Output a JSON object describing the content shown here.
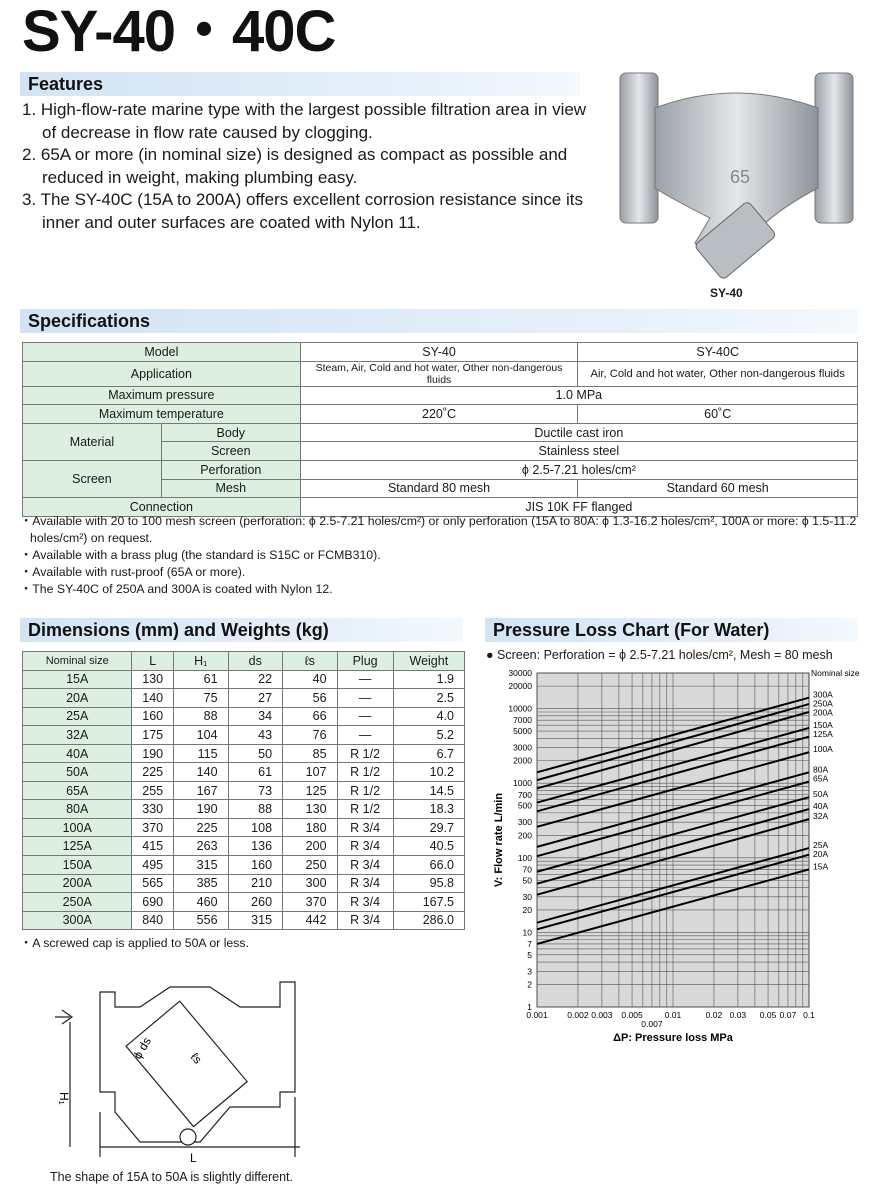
{
  "title": "SY-40・40C",
  "features": {
    "heading": "Features",
    "items": [
      "1. High-flow-rate marine type with the largest possible filtration area in view of decrease in flow rate caused by clogging.",
      "2. 65A or more (in nominal size) is designed as compact as possible and reduced in weight, making plumbing easy.",
      "3. The SY-40C (15A to 200A) offers excellent corrosion resistance since its inner and outer surfaces are coated with Nylon 11."
    ]
  },
  "photo": {
    "caption": "SY-40",
    "body_mark": "65"
  },
  "specs": {
    "heading": "Specifications",
    "model_label": "Model",
    "models": [
      "SY-40",
      "SY-40C"
    ],
    "application_label": "Application",
    "application": [
      "Steam, Air, Cold and hot water, Other non-dangerous fluids",
      "Air, Cold and hot water, Other non-dangerous fluids"
    ],
    "pressure_label": "Maximum pressure",
    "pressure": "1.0 MPa",
    "temperature_label": "Maximum temperature",
    "temperature": [
      "220˚C",
      "60˚C"
    ],
    "material_label": "Material",
    "body_label": "Body",
    "body": "Ductile cast iron",
    "screen_label": "Screen",
    "screen_material": "Stainless steel",
    "screen_group_label": "Screen",
    "perforation_label": "Perforation",
    "perforation": "ϕ 2.5-7.21 holes/cm²",
    "mesh_label": "Mesh",
    "mesh": [
      "Standard 80 mesh",
      "Standard 60 mesh"
    ],
    "connection_label": "Connection",
    "connection": "JIS 10K FF flanged",
    "notes": [
      "・Available with 20 to 100 mesh screen (perforation: ϕ 2.5-7.21 holes/cm²) or only perforation (15A to 80A: ϕ 1.3-16.2 holes/cm², 100A or more: ϕ 1.5-11.2 holes/cm²) on request.",
      "・Available with a brass plug (the standard is S15C or FCMB310).",
      "・Available with rust-proof (65A or more).",
      "・The SY-40C of 250A and 300A is coated with Nylon 12."
    ]
  },
  "dimensions": {
    "heading": "Dimensions (mm) and Weights (kg)",
    "columns": [
      "Nominal size",
      "L",
      "H₁",
      "ds",
      "ℓs",
      "Plug",
      "Weight"
    ],
    "rows": [
      [
        "15A",
        "130",
        "61",
        "22",
        "40",
        "—",
        "1.9"
      ],
      [
        "20A",
        "140",
        "75",
        "27",
        "56",
        "—",
        "2.5"
      ],
      [
        "25A",
        "160",
        "88",
        "34",
        "66",
        "—",
        "4.0"
      ],
      [
        "32A",
        "175",
        "104",
        "43",
        "76",
        "—",
        "5.2"
      ],
      [
        "40A",
        "190",
        "115",
        "50",
        "85",
        "R 1/2",
        "6.7"
      ],
      [
        "50A",
        "225",
        "140",
        "61",
        "107",
        "R 1/2",
        "10.2"
      ],
      [
        "65A",
        "255",
        "167",
        "73",
        "125",
        "R 1/2",
        "14.5"
      ],
      [
        "80A",
        "330",
        "190",
        "88",
        "130",
        "R 1/2",
        "18.3"
      ],
      [
        "100A",
        "370",
        "225",
        "108",
        "180",
        "R 3/4",
        "29.7"
      ],
      [
        "125A",
        "415",
        "263",
        "136",
        "200",
        "R 3/4",
        "40.5"
      ],
      [
        "150A",
        "495",
        "315",
        "160",
        "250",
        "R 3/4",
        "66.0"
      ],
      [
        "200A",
        "565",
        "385",
        "210",
        "300",
        "R 3/4",
        "95.8"
      ],
      [
        "250A",
        "690",
        "460",
        "260",
        "370",
        "R 3/4",
        "167.5"
      ],
      [
        "300A",
        "840",
        "556",
        "315",
        "442",
        "R 3/4",
        "286.0"
      ]
    ],
    "note": "・A screwed cap is applied to 50A or less."
  },
  "diagram": {
    "labels": {
      "ds": "ϕ ds",
      "ls": "ℓs",
      "h1": "H₁",
      "l": "L"
    },
    "caption": "The shape of 15A to 50A is slightly different."
  },
  "chart_data": {
    "type": "line",
    "title": "Pressure Loss Chart (For Water)",
    "subtitle": "● Screen: Perforation = ϕ 2.5-7.21 holes/cm², Mesh = 80 mesh",
    "xlabel": "ΔP: Pressure loss MPa",
    "ylabel": "V: Flow rate L/min",
    "xscale": "log",
    "yscale": "log",
    "xlim": [
      0.001,
      0.1
    ],
    "ylim": [
      1,
      30000
    ],
    "grid": true,
    "xticks": [
      "0.001",
      "0.002",
      "0.003",
      "0.005",
      "0.007",
      "0.01",
      "0.02",
      "0.03",
      "0.05",
      "0.07",
      "0.1"
    ],
    "yticks": [
      "1",
      "2",
      "3",
      "5",
      "7",
      "10",
      "20",
      "30",
      "50",
      "70",
      "100",
      "200",
      "300",
      "500",
      "700",
      "1000",
      "2000",
      "3000",
      "5000",
      "7000",
      "10000",
      "20000",
      "30000"
    ],
    "legend_title": "Nominal size",
    "background": "#d9d9d9",
    "series": [
      {
        "name": "300A",
        "x": [
          0.001,
          0.1
        ],
        "y": [
          1400,
          14000
        ]
      },
      {
        "name": "250A",
        "x": [
          0.001,
          0.1
        ],
        "y": [
          1100,
          11500
        ]
      },
      {
        "name": "200A",
        "x": [
          0.001,
          0.1
        ],
        "y": [
          850,
          9000
        ]
      },
      {
        "name": "150A",
        "x": [
          0.001,
          0.1
        ],
        "y": [
          550,
          5500
        ]
      },
      {
        "name": "125A",
        "x": [
          0.001,
          0.1
        ],
        "y": [
          420,
          4200
        ]
      },
      {
        "name": "100A",
        "x": [
          0.001,
          0.1
        ],
        "y": [
          260,
          2600
        ]
      },
      {
        "name": "80A",
        "x": [
          0.001,
          0.1
        ],
        "y": [
          140,
          1400
        ]
      },
      {
        "name": "65A",
        "x": [
          0.001,
          0.1
        ],
        "y": [
          105,
          1050
        ]
      },
      {
        "name": "50A",
        "x": [
          0.001,
          0.1
        ],
        "y": [
          65,
          650
        ]
      },
      {
        "name": "40A",
        "x": [
          0.001,
          0.1
        ],
        "y": [
          45,
          450
        ]
      },
      {
        "name": "32A",
        "x": [
          0.001,
          0.1
        ],
        "y": [
          32,
          330
        ]
      },
      {
        "name": "25A",
        "x": [
          0.001,
          0.1
        ],
        "y": [
          13.5,
          135
        ]
      },
      {
        "name": "20A",
        "x": [
          0.001,
          0.1
        ],
        "y": [
          11,
          110
        ]
      },
      {
        "name": "15A",
        "x": [
          0.001,
          0.1
        ],
        "y": [
          7,
          70
        ]
      }
    ]
  }
}
